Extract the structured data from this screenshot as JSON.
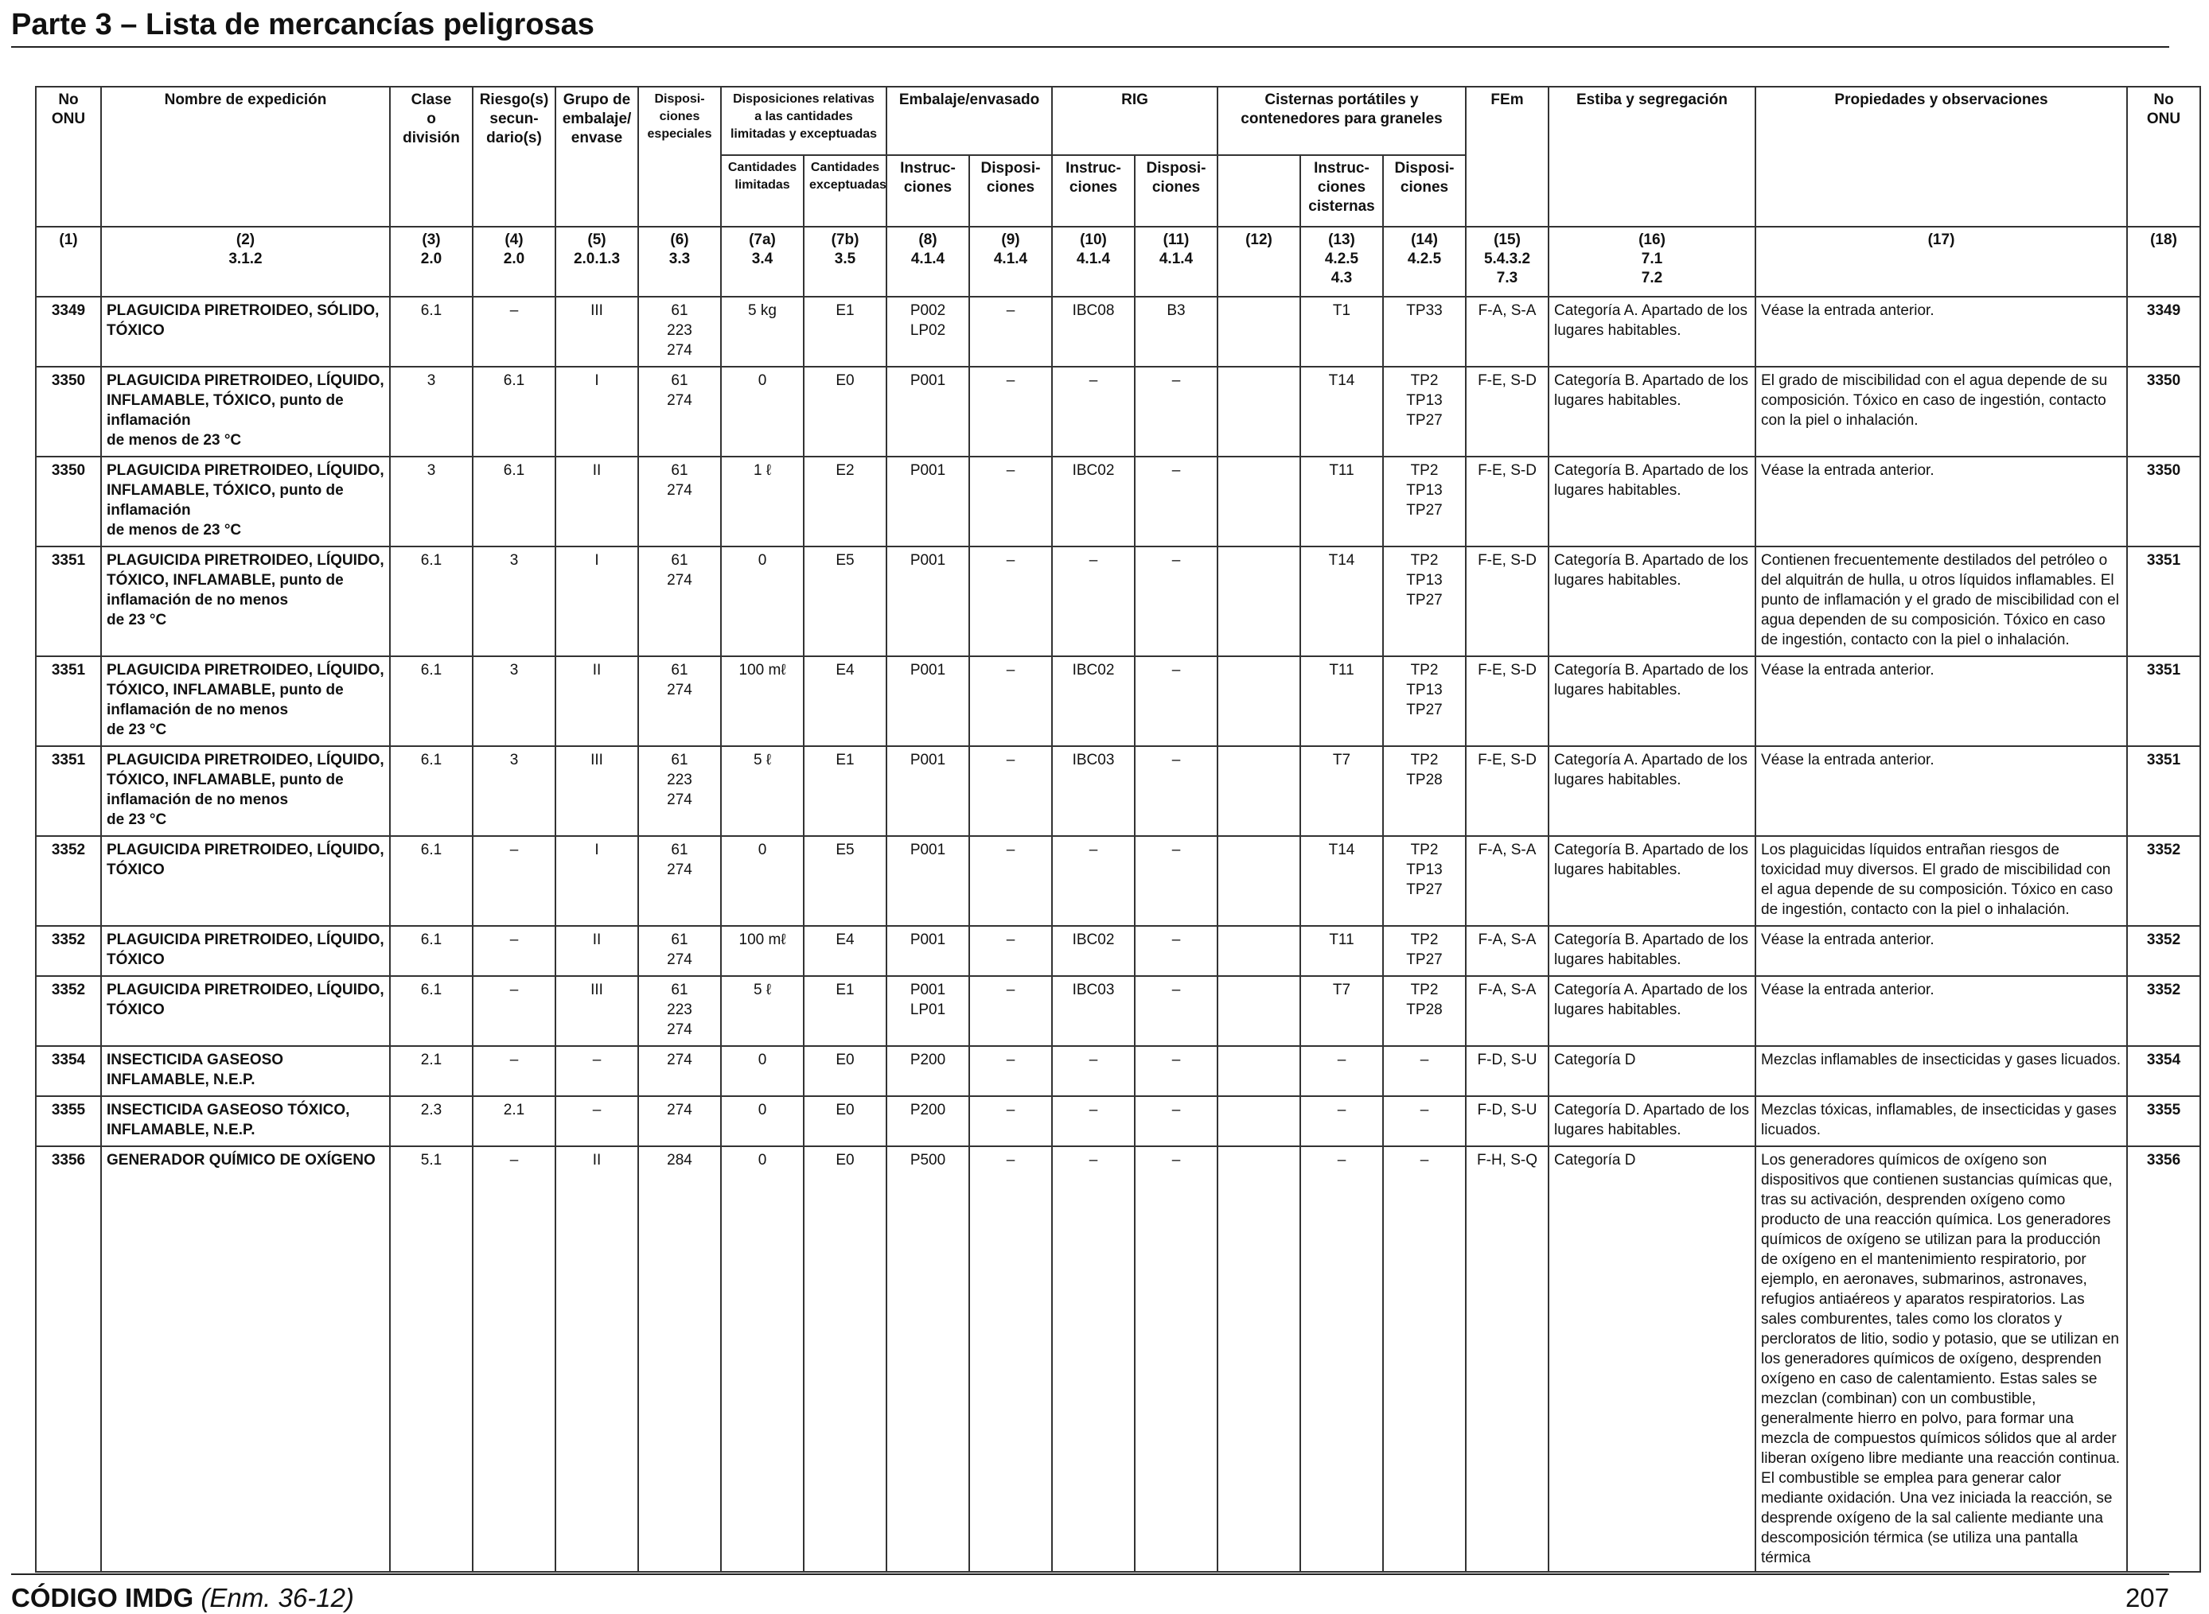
{
  "page": {
    "title": "Parte 3 – Lista de mercancías peligrosas",
    "footer_code": "CÓDIGO IMDG",
    "footer_edition": "(Enm. 36-12)",
    "page_number": "207"
  },
  "header": {
    "no_onu": "No\nONU",
    "nombre": "Nombre de expedición",
    "clase": "Clase\no\ndivisión",
    "riesgo": "Riesgo(s)\nsecun-\ndario(s)",
    "grupo": "Grupo de\nembalaje/\nenvase",
    "disposiciones": "Disposi-\nciones\nespeciales",
    "disp_rel": "Disposiciones relativas\na las cantidades\nlimitadas y exceptuadas",
    "cant_lim": "Cantidades\nlimitadas",
    "cant_exc": "Cantidades\nexceptuadas",
    "embalaje": "Embalaje/envasado",
    "instrucciones": "Instruc-\nciones",
    "disposi": "Disposi-\nciones",
    "rig": "RIG",
    "cisternas": "Cisternas portátiles y\ncontenedores para graneles",
    "instr_cisternas": "Instruc-\nciones\ncisternas",
    "fem": "FEm",
    "estiba": "Estiba y segregación",
    "propiedades": "Propiedades y observaciones",
    "no_onu_right": "No\nONU"
  },
  "column_numbers": [
    "(1)",
    "(2)\n3.1.2",
    "(3)\n2.0",
    "(4)\n2.0",
    "(5)\n2.0.1.3",
    "(6)\n3.3",
    "(7a)\n3.4",
    "(7b)\n3.5",
    "(8)\n4.1.4",
    "(9)\n4.1.4",
    "(10)\n4.1.4",
    "(11)\n4.1.4",
    "(12)",
    "(13)\n4.2.5\n4.3",
    "(14)\n4.2.5",
    "(15)\n5.4.3.2\n7.3",
    "(16)\n7.1\n7.2",
    "(17)",
    "(18)"
  ],
  "rows": [
    {
      "un": "3349",
      "name": "PLAGUICIDA PIRETROIDEO, SÓLIDO, TÓXICO",
      "clase": "6.1",
      "riesgo": "–",
      "grupo": "III",
      "disp": "61\n223\n274",
      "lim": "5 kg",
      "exc": "E1",
      "instr": "P002\nLP02",
      "disp9": "–",
      "rig": "IBC08",
      "disp11": "B3",
      "c12": "",
      "tank": "T1",
      "tankdisp": "TP33",
      "fem": "F-A, S-A",
      "estiba": "Categoría A. Apartado de los lugares habitables.",
      "props": "Véase la entrada anterior.",
      "un2": "3349"
    },
    {
      "un": "3350",
      "name": "PLAGUICIDA PIRETROIDEO, LÍQUIDO, INFLAMABLE, TÓXICO, punto de inflamación\nde menos de 23 °C",
      "clase": "3",
      "riesgo": "6.1",
      "grupo": "I",
      "disp": "61\n274",
      "lim": "0",
      "exc": "E0",
      "instr": "P001",
      "disp9": "–",
      "rig": "–",
      "disp11": "–",
      "c12": "",
      "tank": "T14",
      "tankdisp": "TP2\nTP13\nTP27",
      "fem": "F-E, S-D",
      "estiba": "Categoría B. Apartado de los lugares habitables.",
      "props": "El grado de miscibilidad con el agua depende de su composición. Tóxico en caso de ingestión, contacto con la piel o inhalación.",
      "un2": "3350"
    },
    {
      "un": "3350",
      "name": "PLAGUICIDA PIRETROIDEO, LÍQUIDO, INFLAMABLE, TÓXICO, punto de inflamación\nde menos de 23 °C",
      "clase": "3",
      "riesgo": "6.1",
      "grupo": "II",
      "disp": "61\n274",
      "lim": "1 ℓ",
      "exc": "E2",
      "instr": "P001",
      "disp9": "–",
      "rig": "IBC02",
      "disp11": "–",
      "c12": "",
      "tank": "T11",
      "tankdisp": "TP2\nTP13\nTP27",
      "fem": "F-E, S-D",
      "estiba": "Categoría B. Apartado de los lugares habitables.",
      "props": "Véase la entrada anterior.",
      "un2": "3350"
    },
    {
      "un": "3351",
      "name": "PLAGUICIDA PIRETROIDEO, LÍQUIDO, TÓXICO, INFLAMABLE, punto de inflamación de no menos\nde 23 °C",
      "clase": "6.1",
      "riesgo": "3",
      "grupo": "I",
      "disp": "61\n274",
      "lim": "0",
      "exc": "E5",
      "instr": "P001",
      "disp9": "–",
      "rig": "–",
      "disp11": "–",
      "c12": "",
      "tank": "T14",
      "tankdisp": "TP2\nTP13\nTP27",
      "fem": "F-E, S-D",
      "estiba": "Categoría B. Apartado de los lugares habitables.",
      "props": "Contienen frecuentemente destilados del petróleo o del alquitrán de hulla, u otros líquidos inflamables. El punto de inflamación y el grado de miscibilidad con el agua dependen de su composición. Tóxico en caso de ingestión, contacto con la piel o inhalación.",
      "un2": "3351"
    },
    {
      "un": "3351",
      "name": "PLAGUICIDA PIRETROIDEO, LÍQUIDO, TÓXICO, INFLAMABLE, punto de inflamación de no menos\nde 23 °C",
      "clase": "6.1",
      "riesgo": "3",
      "grupo": "II",
      "disp": "61\n274",
      "lim": "100 mℓ",
      "exc": "E4",
      "instr": "P001",
      "disp9": "–",
      "rig": "IBC02",
      "disp11": "–",
      "c12": "",
      "tank": "T11",
      "tankdisp": "TP2\nTP13\nTP27",
      "fem": "F-E, S-D",
      "estiba": "Categoría B. Apartado de los lugares habitables.",
      "props": "Véase la entrada anterior.",
      "un2": "3351"
    },
    {
      "un": "3351",
      "name": "PLAGUICIDA PIRETROIDEO, LÍQUIDO, TÓXICO, INFLAMABLE, punto de inflamación de no menos\nde 23 °C",
      "clase": "6.1",
      "riesgo": "3",
      "grupo": "III",
      "disp": "61\n223\n274",
      "lim": "5 ℓ",
      "exc": "E1",
      "instr": "P001",
      "disp9": "–",
      "rig": "IBC03",
      "disp11": "–",
      "c12": "",
      "tank": "T7",
      "tankdisp": "TP2\nTP28",
      "fem": "F-E, S-D",
      "estiba": "Categoría A. Apartado de los lugares habitables.",
      "props": "Véase la entrada anterior.",
      "un2": "3351"
    },
    {
      "un": "3352",
      "name": "PLAGUICIDA PIRETROIDEO, LÍQUIDO, TÓXICO",
      "clase": "6.1",
      "riesgo": "–",
      "grupo": "I",
      "disp": "61\n274",
      "lim": "0",
      "exc": "E5",
      "instr": "P001",
      "disp9": "–",
      "rig": "–",
      "disp11": "–",
      "c12": "",
      "tank": "T14",
      "tankdisp": "TP2\nTP13\nTP27",
      "fem": "F-A, S-A",
      "estiba": "Categoría B. Apartado de los lugares habitables.",
      "props": "Los plaguicidas líquidos entrañan riesgos de toxicidad muy diversos. El grado de miscibilidad con el agua depende de su composición. Tóxico en caso de ingestión, contacto con la piel o inhalación.",
      "un2": "3352"
    },
    {
      "un": "3352",
      "name": "PLAGUICIDA PIRETROIDEO, LÍQUIDO, TÓXICO",
      "clase": "6.1",
      "riesgo": "–",
      "grupo": "II",
      "disp": "61\n274",
      "lim": "100 mℓ",
      "exc": "E4",
      "instr": "P001",
      "disp9": "–",
      "rig": "IBC02",
      "disp11": "–",
      "c12": "",
      "tank": "T11",
      "tankdisp": "TP2\nTP27",
      "fem": "F-A, S-A",
      "estiba": "Categoría B. Apartado de los lugares habitables.",
      "props": "Véase la entrada anterior.",
      "un2": "3352"
    },
    {
      "un": "3352",
      "name": "PLAGUICIDA PIRETROIDEO, LÍQUIDO, TÓXICO",
      "clase": "6.1",
      "riesgo": "–",
      "grupo": "III",
      "disp": "61\n223\n274",
      "lim": "5 ℓ",
      "exc": "E1",
      "instr": "P001\nLP01",
      "disp9": "–",
      "rig": "IBC03",
      "disp11": "–",
      "c12": "",
      "tank": "T7",
      "tankdisp": "TP2\nTP28",
      "fem": "F-A, S-A",
      "estiba": "Categoría A. Apartado de los lugares habitables.",
      "props": "Véase la entrada anterior.",
      "un2": "3352"
    },
    {
      "un": "3354",
      "name": "INSECTICIDA GASEOSO INFLAMABLE, N.E.P.",
      "clase": "2.1",
      "riesgo": "–",
      "grupo": "–",
      "disp": "274",
      "lim": "0",
      "exc": "E0",
      "instr": "P200",
      "disp9": "–",
      "rig": "–",
      "disp11": "–",
      "c12": "",
      "tank": "–",
      "tankdisp": "–",
      "fem": "F-D, S-U",
      "estiba": "Categoría D",
      "props": "Mezclas inflamables de insecticidas y gases licuados.",
      "un2": "3354"
    },
    {
      "un": "3355",
      "name": "INSECTICIDA GASEOSO TÓXICO, INFLAMABLE, N.E.P.",
      "clase": "2.3",
      "riesgo": "2.1",
      "grupo": "–",
      "disp": "274",
      "lim": "0",
      "exc": "E0",
      "instr": "P200",
      "disp9": "–",
      "rig": "–",
      "disp11": "–",
      "c12": "",
      "tank": "–",
      "tankdisp": "–",
      "fem": "F-D, S-U",
      "estiba": "Categoría D. Apartado de los lugares habitables.",
      "props": "Mezclas tóxicas, inflamables, de insecticidas y gases licuados.",
      "un2": "3355"
    },
    {
      "un": "3356",
      "name": "GENERADOR QUÍMICO DE OXÍGENO",
      "clase": "5.1",
      "riesgo": "–",
      "grupo": "II",
      "disp": "284",
      "lim": "0",
      "exc": "E0",
      "instr": "P500",
      "disp9": "–",
      "rig": "–",
      "disp11": "–",
      "c12": "",
      "tank": "–",
      "tankdisp": "–",
      "fem": "F-H, S-Q",
      "estiba": "Categoría D",
      "props": "Los generadores químicos de oxígeno son dispositivos que contienen sustancias químicas que, tras su activación, desprenden oxígeno como producto de una reacción química. Los generadores químicos de oxígeno se utilizan para la producción de oxígeno en el mantenimiento respiratorio, por ejemplo, en aeronaves, submarinos, astronaves, refugios antiaéreos y aparatos respiratorios. Las sales comburentes, tales como los cloratos y percloratos de litio, sodio y potasio, que se utilizan en los generadores químicos de oxígeno, desprenden oxígeno en caso de calentamiento. Estas sales se mezclan (combinan) con un combustible, generalmente hierro en polvo, para formar una mezcla de compuestos químicos sólidos que al arder liberan oxígeno libre mediante una reacción continua. El combustible se emplea para generar calor mediante oxidación. Una vez iniciada la reacción, se desprende oxígeno de la sal caliente mediante una descomposición térmica (se utiliza una pantalla térmica",
      "un2": "3356"
    }
  ]
}
